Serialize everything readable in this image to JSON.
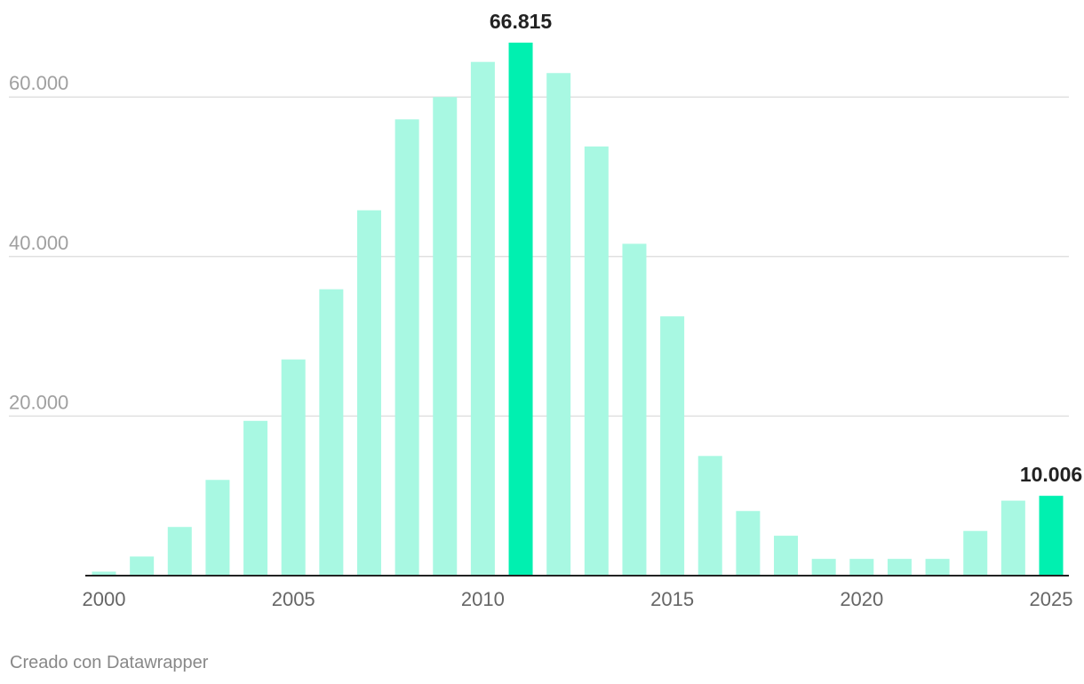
{
  "chart_data": {
    "type": "bar",
    "categories": [
      "2000",
      "2001",
      "2002",
      "2003",
      "2004",
      "2005",
      "2006",
      "2007",
      "2008",
      "2009",
      "2010",
      "2011",
      "2012",
      "2013",
      "2014",
      "2015",
      "2016",
      "2017",
      "2018",
      "2019",
      "2020",
      "2021",
      "2022",
      "2023",
      "2024",
      "2025"
    ],
    "values": [
      500,
      2400,
      6100,
      12000,
      19400,
      27100,
      35900,
      45800,
      57200,
      60000,
      64400,
      66815,
      63000,
      53800,
      41600,
      32500,
      15000,
      8100,
      5000,
      2100,
      2100,
      2100,
      2100,
      5600,
      9400,
      10006
    ],
    "x_tick_labels": [
      "2000",
      "2005",
      "2010",
      "2015",
      "2020",
      "2025"
    ],
    "y_ticks": [
      20000,
      40000,
      60000
    ],
    "y_tick_labels": [
      "20.000",
      "40.000",
      "60.000"
    ],
    "ylim": [
      0,
      66815
    ],
    "grid": true,
    "highlighted": [
      {
        "category": "2011",
        "label": "66.815"
      },
      {
        "category": "2025",
        "label": "10.006"
      }
    ],
    "colors": {
      "bar": "#a8f8e2",
      "highlight": "#00f0b0",
      "grid": "#e0e0e0",
      "axis": "#222222",
      "tick_text": "#a0a0a0",
      "x_text": "#666666",
      "label_text": "#222222"
    }
  },
  "credit": "Creado con Datawrapper"
}
